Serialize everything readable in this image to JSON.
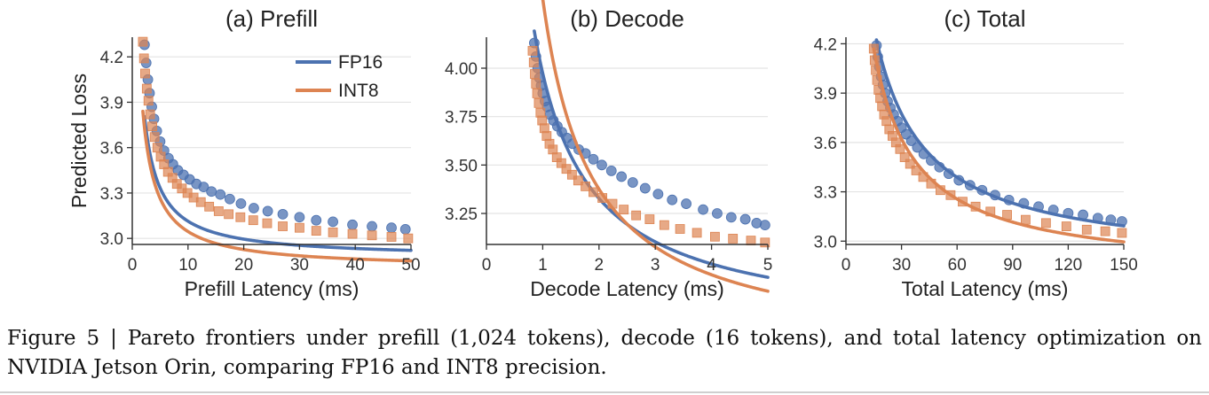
{
  "figure": {
    "caption": "Figure 5 | Pareto frontiers under prefill (1,024 tokens), decode (16 tokens), and total latency optimization on NVIDIA Jetson Orin, comparing FP16 and INT8 precision."
  },
  "colors": {
    "FP16": "#4C72B0",
    "INT8": "#DD8452"
  },
  "chart_data": [
    {
      "type": "scatter",
      "title": "(a) Prefill",
      "xlabel": "Prefill Latency (ms)",
      "ylabel": "Predicted Loss",
      "xlim": [
        0,
        50
      ],
      "ylim": [
        2.96,
        4.33
      ],
      "xticks": [
        0,
        10,
        20,
        30,
        40,
        50
      ],
      "yticks": [
        3.0,
        3.3,
        3.6,
        3.9,
        4.2
      ],
      "ytick_labels": [
        "3.0",
        "3.3",
        "3.6",
        "3.9",
        "4.2"
      ],
      "grid": "horizontal",
      "legend": {
        "position": "top-right",
        "entries": [
          "FP16",
          "INT8"
        ]
      },
      "series": [
        {
          "name": "FP16",
          "marker": "circle",
          "x": [
            2.2,
            2.5,
            2.8,
            3.1,
            3.5,
            3.9,
            4.4,
            5.0,
            5.7,
            6.5,
            7.3,
            8.2,
            9.2,
            10.3,
            11.5,
            12.8,
            14.2,
            15.8,
            17.5,
            19.5,
            21.8,
            24.3,
            27.0,
            30.0,
            33.0,
            36.0,
            39.5,
            43.0,
            46.5,
            49.0
          ],
          "y": [
            4.28,
            4.16,
            4.05,
            3.96,
            3.87,
            3.79,
            3.71,
            3.64,
            3.58,
            3.53,
            3.49,
            3.45,
            3.42,
            3.39,
            3.36,
            3.34,
            3.31,
            3.29,
            3.26,
            3.23,
            3.2,
            3.18,
            3.16,
            3.14,
            3.12,
            3.11,
            3.09,
            3.08,
            3.07,
            3.06
          ],
          "fit": {
            "a": 2.87,
            "b": 2.57,
            "c": 0.55
          }
        },
        {
          "name": "INT8",
          "marker": "square",
          "x": [
            1.9,
            2.1,
            2.3,
            2.6,
            2.9,
            3.2,
            3.6,
            4.0,
            4.5,
            5.1,
            5.7,
            6.4,
            7.2,
            8.0,
            8.9,
            9.9,
            11.0,
            12.3,
            13.8,
            15.5,
            17.3,
            19.4,
            21.7,
            24.2,
            27.0,
            30.0,
            33.0,
            36.0,
            39.5,
            43.0,
            46.5,
            49.5
          ],
          "y": [
            4.3,
            4.19,
            4.09,
            3.99,
            3.91,
            3.82,
            3.74,
            3.67,
            3.6,
            3.54,
            3.49,
            3.44,
            3.4,
            3.36,
            3.33,
            3.3,
            3.27,
            3.24,
            3.21,
            3.18,
            3.16,
            3.14,
            3.12,
            3.1,
            3.08,
            3.07,
            3.05,
            3.04,
            3.03,
            3.02,
            3.01,
            3.0
          ],
          "fit": {
            "a": 2.8,
            "b": 2.6,
            "c": 0.6
          }
        }
      ]
    },
    {
      "type": "scatter",
      "title": "(b) Decode",
      "xlabel": "Decode Latency (ms)",
      "ylabel": "",
      "xlim": [
        0,
        5
      ],
      "ylim": [
        3.09,
        4.16
      ],
      "xticks": [
        0,
        1,
        2,
        3,
        4,
        5
      ],
      "yticks": [
        3.25,
        3.5,
        3.75,
        4.0
      ],
      "ytick_labels": [
        "3.25",
        "3.50",
        "3.75",
        "4.00"
      ],
      "grid": "horizontal",
      "legend": null,
      "series": [
        {
          "name": "FP16",
          "marker": "circle",
          "x": [
            0.85,
            0.88,
            0.91,
            0.94,
            0.97,
            1.0,
            1.04,
            1.08,
            1.13,
            1.19,
            1.26,
            1.34,
            1.43,
            1.53,
            1.64,
            1.76,
            1.9,
            2.05,
            2.22,
            2.4,
            2.6,
            2.82,
            3.05,
            3.3,
            3.55,
            3.85,
            4.1,
            4.35,
            4.6,
            4.8,
            4.95
          ],
          "y": [
            4.13,
            4.06,
            4.0,
            3.95,
            3.91,
            3.87,
            3.83,
            3.8,
            3.76,
            3.73,
            3.7,
            3.67,
            3.64,
            3.61,
            3.58,
            3.56,
            3.53,
            3.5,
            3.47,
            3.44,
            3.41,
            3.38,
            3.35,
            3.32,
            3.3,
            3.27,
            3.25,
            3.23,
            3.22,
            3.2,
            3.19
          ],
          "fit": {
            "a": 2.64,
            "b": 1.42,
            "c": 0.065
          }
        },
        {
          "name": "INT8",
          "marker": "square",
          "x": [
            0.82,
            0.84,
            0.86,
            0.88,
            0.9,
            0.93,
            0.96,
            0.99,
            1.03,
            1.07,
            1.12,
            1.18,
            1.25,
            1.33,
            1.42,
            1.52,
            1.63,
            1.76,
            1.9,
            2.06,
            2.24,
            2.44,
            2.66,
            2.9,
            3.16,
            3.44,
            3.74,
            4.06,
            4.38,
            4.7,
            4.95
          ],
          "y": [
            4.09,
            4.03,
            3.97,
            3.92,
            3.87,
            3.82,
            3.77,
            3.73,
            3.69,
            3.65,
            3.61,
            3.58,
            3.54,
            3.51,
            3.48,
            3.45,
            3.42,
            3.39,
            3.36,
            3.33,
            3.3,
            3.27,
            3.24,
            3.22,
            3.19,
            3.17,
            3.15,
            3.13,
            3.12,
            3.11,
            3.1
          ],
          "fit": {
            "a": 2.52,
            "b": 1.6,
            "c": -0.13
          }
        }
      ]
    },
    {
      "type": "scatter",
      "title": "(c) Total",
      "xlabel": "Total Latency (ms)",
      "ylabel": "",
      "xlim": [
        0,
        150
      ],
      "ylim": [
        2.98,
        4.24
      ],
      "xticks": [
        0,
        30,
        60,
        90,
        120,
        150
      ],
      "yticks": [
        3.0,
        3.3,
        3.6,
        3.9,
        4.2
      ],
      "ytick_labels": [
        "3.0",
        "3.3",
        "3.6",
        "3.9",
        "4.2"
      ],
      "grid": "horizontal",
      "legend": null,
      "series": [
        {
          "name": "FP16",
          "marker": "circle",
          "x": [
            16.5,
            17.2,
            18.0,
            19.0,
            20.0,
            21.2,
            22.5,
            24.0,
            25.8,
            27.8,
            30.0,
            32.5,
            35.3,
            38.5,
            42.0,
            46.0,
            50.5,
            55.5,
            61.0,
            67.0,
            73.5,
            80.5,
            88.0,
            96.0,
            104.0,
            112.0,
            120.0,
            128.0,
            136.0,
            143.0,
            149.0
          ],
          "y": [
            4.19,
            4.12,
            4.06,
            4.0,
            3.95,
            3.9,
            3.85,
            3.81,
            3.77,
            3.73,
            3.69,
            3.65,
            3.61,
            3.57,
            3.53,
            3.49,
            3.45,
            3.41,
            3.37,
            3.34,
            3.31,
            3.28,
            3.25,
            3.23,
            3.21,
            3.19,
            3.17,
            3.16,
            3.14,
            3.13,
            3.12
          ],
          "fit": {
            "a": 2.86,
            "b": 37.5,
            "c": 11.0
          }
        },
        {
          "name": "INT8",
          "marker": "square",
          "x": [
            15.0,
            15.5,
            16.1,
            16.8,
            17.6,
            18.5,
            19.5,
            20.6,
            21.9,
            23.4,
            25.1,
            27.0,
            29.2,
            31.7,
            34.6,
            37.9,
            41.7,
            46.0,
            51.0,
            56.5,
            63.0,
            70.0,
            78.0,
            87.0,
            97.0,
            108.0,
            119.0,
            130.0,
            140.0,
            149.0
          ],
          "y": [
            4.17,
            4.1,
            4.04,
            3.98,
            3.92,
            3.87,
            3.82,
            3.77,
            3.73,
            3.68,
            3.64,
            3.6,
            3.56,
            3.51,
            3.47,
            3.43,
            3.39,
            3.35,
            3.31,
            3.28,
            3.24,
            3.21,
            3.18,
            3.16,
            3.13,
            3.11,
            3.09,
            3.07,
            3.06,
            3.05
          ],
          "fit": {
            "a": 2.8,
            "b": 30.8,
            "c": 7.5
          }
        }
      ]
    }
  ]
}
